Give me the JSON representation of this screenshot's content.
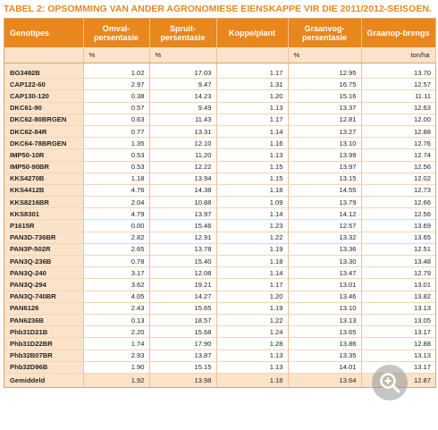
{
  "title": "TABEL 2: OPSOMMING VAN ANDER AGRONOMIESE EIENSKAPPE VIR DIE 2011/2012-SEISOEN.",
  "headers": [
    "Genotipes",
    "Omval-persentasie",
    "Spruit-persentasie",
    "Koppe/plant",
    "Graanvog-persentasie",
    "Graanop-brengs"
  ],
  "units": [
    "",
    "%",
    "%",
    "",
    "%",
    "ton/ha"
  ],
  "rows": [
    [
      "BG3492B",
      "1.02",
      "17.03",
      "1.17",
      "12.95",
      "13.70"
    ],
    [
      "CAP122-60",
      "2.97",
      "9.47",
      "1.31",
      "16.75",
      "12.57"
    ],
    [
      "CAP130-120",
      "0.38",
      "14.23",
      "1.20",
      "15.16",
      "11.11"
    ],
    [
      "DKC61-90",
      "0.57",
      "9.49",
      "1.13",
      "13.37",
      "12.63"
    ],
    [
      "DKC62-80BRGEN",
      "0.63",
      "11.43",
      "1.17",
      "12.81",
      "12.00"
    ],
    [
      "DKC62-84R",
      "0.77",
      "13.31",
      "1.14",
      "13.27",
      "12.88"
    ],
    [
      "DKC64-78BRGEN",
      "1.35",
      "12.10",
      "1.16",
      "13.10",
      "12.76"
    ],
    [
      "IMP50-10R",
      "0.53",
      "11.20",
      "1.13",
      "13.99",
      "12.74"
    ],
    [
      "IMP50-90BR",
      "0.53",
      "12.22",
      "1.15",
      "13.97",
      "12.56"
    ],
    [
      "KKS4270B",
      "1.18",
      "13.94",
      "1.15",
      "13.15",
      "12.02"
    ],
    [
      "KKS4412B",
      "4.76",
      "14.38",
      "1.18",
      "14.55",
      "12.73"
    ],
    [
      "KKS8216BR",
      "2.04",
      "10.88",
      "1.09",
      "13.79",
      "12.66"
    ],
    [
      "KKS8301",
      "4.79",
      "13.97",
      "1.14",
      "14.12",
      "12.56"
    ],
    [
      "P1615R",
      "0.00",
      "15.46",
      "1.23",
      "12.57",
      "13.69"
    ],
    [
      "PAN3D-736BR",
      "2.82",
      "12.91",
      "1.22",
      "13.32",
      "13.65"
    ],
    [
      "PAN3P-502R",
      "2.65",
      "13.78",
      "1.19",
      "13.36",
      "12.51"
    ],
    [
      "PAN3Q-236B",
      "0.78",
      "15.40",
      "1.18",
      "13.30",
      "13.48"
    ],
    [
      "PAN3Q-240",
      "3.17",
      "12.08",
      "1.14",
      "13.47",
      "12.79"
    ],
    [
      "PAN3Q-294",
      "3.62",
      "19.21",
      "1.17",
      "13.01",
      "13.01"
    ],
    [
      "PAN3Q-740BR",
      "4.05",
      "14.27",
      "1.20",
      "13.46",
      "13.82"
    ],
    [
      "PAN6126",
      "2.43",
      "15.65",
      "1.19",
      "13.10",
      "13.13"
    ],
    [
      "PAN6236B",
      "0.13",
      "18.57",
      "1.22",
      "13.13",
      "13.05"
    ],
    [
      "Phb31D21B",
      "2.20",
      "15.68",
      "1.24",
      "13.65",
      "13.17"
    ],
    [
      "Phb31D22BR",
      "1.74",
      "17.90",
      "1.28",
      "13.86",
      "12.88"
    ],
    [
      "Phb32B07BR",
      "2.93",
      "13.87",
      "1.13",
      "13.35",
      "13.13"
    ],
    [
      "Phb32D96B",
      "1.90",
      "15.15",
      "1.13",
      "14.01",
      "13.17"
    ]
  ],
  "footer": [
    "Gemiddeld",
    "1.92",
    "13.98",
    "1.18",
    "13.64",
    "12.87"
  ],
  "colors": {
    "accent": "#e8871e",
    "light": "#fbe3ca"
  },
  "zoom": {
    "icon": "zoom-in-icon"
  }
}
